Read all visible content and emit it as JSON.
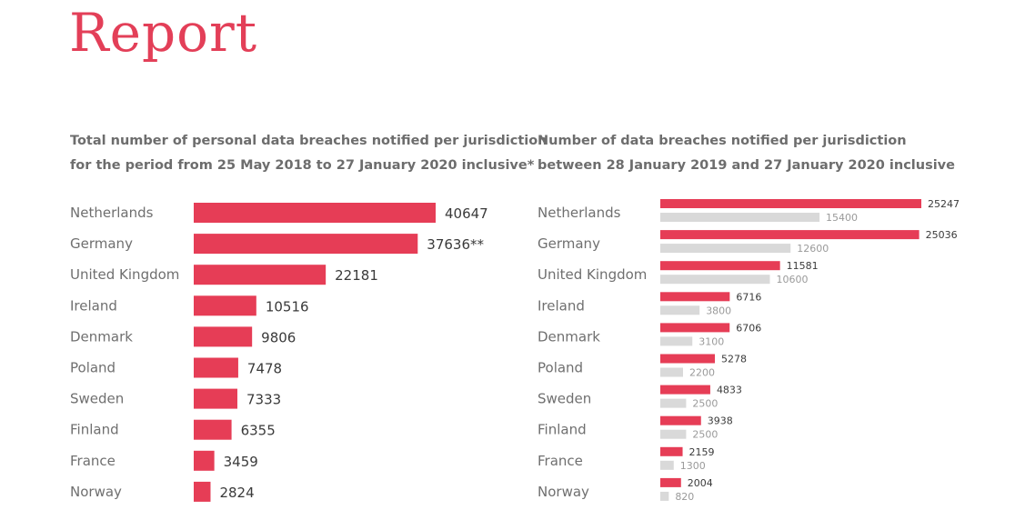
{
  "header": {
    "title": "Report"
  },
  "colors": {
    "primary": "#e63d56",
    "secondary": "#d9d9d9"
  },
  "chart_data": [
    {
      "type": "bar",
      "orientation": "horizontal",
      "title_lines": [
        "Total number of personal data breaches notified per jurisdiction",
        "for the period from 25 May 2018 to 27 January 2020 inclusive*"
      ],
      "categories": [
        "Netherlands",
        "Germany",
        "United Kingdom",
        "Ireland",
        "Denmark",
        "Poland",
        "Sweden",
        "Finland",
        "France",
        "Norway"
      ],
      "values": [
        40647,
        37636,
        22181,
        10516,
        9806,
        7478,
        7333,
        6355,
        3459,
        2824
      ],
      "value_labels": [
        "40647",
        "37636**",
        "22181",
        "10516",
        "9806",
        "7478",
        "7333",
        "6355",
        "3459",
        "2824"
      ]
    },
    {
      "type": "bar",
      "orientation": "horizontal",
      "title_lines": [
        "Number of data breaches notified per jurisdiction",
        "between 28 January 2019 and 27 January 2020 inclusive"
      ],
      "categories": [
        "Netherlands",
        "Germany",
        "United Kingdom",
        "Ireland",
        "Denmark",
        "Poland",
        "Sweden",
        "Finland",
        "France",
        "Norway"
      ],
      "series": [
        {
          "values": [
            25247,
            25036,
            11581,
            6716,
            6706,
            5278,
            4833,
            3938,
            2159,
            2004
          ],
          "color": "#e63d56"
        },
        {
          "values": [
            15400,
            12600,
            10600,
            3800,
            3100,
            2200,
            2500,
            2500,
            1300,
            820
          ],
          "color": "#d9d9d9"
        }
      ]
    }
  ]
}
